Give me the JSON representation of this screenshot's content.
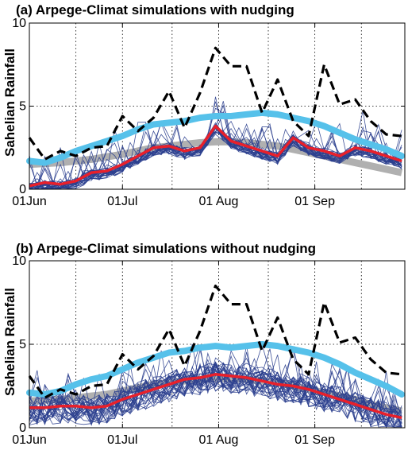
{
  "chart_data": [
    {
      "type": "line",
      "title": "(a) Arpege-Climat simulations with nudging",
      "xlabel": "",
      "ylabel": "Sahelian Rainfall",
      "ylim": [
        0,
        10
      ],
      "xlim": [
        "01 Jun",
        "30 Sep"
      ],
      "yticks": [
        "0",
        "5",
        "10"
      ],
      "xticks": [
        "01Jun",
        "01Jul",
        "01 Aug",
        "01 Sep"
      ],
      "xtick_days": [
        0,
        30,
        61,
        92
      ],
      "grid": true,
      "colors": {
        "observed": "#000000",
        "climatology_light": "#56c1ea",
        "climatology_grey": "#b0b0b0",
        "members": "#2b3f8e",
        "ensemble_mean": "#e8202b"
      },
      "x": [
        0,
        5,
        10,
        15,
        20,
        25,
        30,
        35,
        40,
        45,
        50,
        55,
        60,
        65,
        70,
        75,
        80,
        85,
        90,
        95,
        100,
        105,
        110,
        115,
        120
      ],
      "series": [
        {
          "role": "observed",
          "values": [
            3.1,
            1.8,
            2.3,
            2.0,
            2.5,
            2.6,
            4.4,
            3.5,
            4.3,
            5.9,
            3.7,
            5.8,
            8.5,
            7.4,
            7.4,
            4.6,
            6.6,
            4.1,
            3.2,
            7.5,
            5.1,
            5.4,
            4.1,
            3.3,
            3.2
          ]
        },
        {
          "role": "climatology_light",
          "values": [
            1.7,
            1.6,
            1.9,
            2.3,
            2.6,
            2.9,
            3.2,
            3.6,
            3.9,
            4.0,
            4.1,
            4.3,
            4.4,
            4.4,
            4.5,
            4.6,
            4.5,
            4.3,
            4.1,
            3.8,
            3.4,
            3.0,
            2.7,
            2.4,
            2.0
          ]
        },
        {
          "role": "climatology_grey",
          "values": [
            1.5,
            1.55,
            1.6,
            1.7,
            1.8,
            1.95,
            2.1,
            2.3,
            2.5,
            2.6,
            2.7,
            2.8,
            2.85,
            2.85,
            2.8,
            2.7,
            2.6,
            2.4,
            2.2,
            2.0,
            1.8,
            1.6,
            1.4,
            1.2,
            1.0
          ]
        },
        {
          "role": "ensemble_mean",
          "values": [
            0.2,
            0.4,
            0.3,
            0.5,
            1.0,
            1.1,
            1.5,
            2.0,
            2.5,
            2.6,
            2.3,
            2.5,
            3.8,
            2.9,
            2.6,
            2.3,
            2.0,
            3.1,
            2.5,
            2.3,
            2.0,
            2.5,
            2.3,
            2.0,
            1.7
          ]
        }
      ],
      "member_count": 30
    },
    {
      "type": "line",
      "title": "(b) Arpege-Climat simulations without nudging",
      "xlabel": "",
      "ylabel": "Sahelian Rainfall",
      "ylim": [
        0,
        10
      ],
      "xlim": [
        "01 Jun",
        "30 Sep"
      ],
      "yticks": [
        "0",
        "5",
        "10"
      ],
      "xticks": [
        "01Jun",
        "01Jul",
        "01 Aug",
        "01 Sep"
      ],
      "xtick_days": [
        0,
        30,
        61,
        92
      ],
      "grid": true,
      "colors": {
        "observed": "#000000",
        "climatology_light": "#56c1ea",
        "climatology_grey": "#b0b0b0",
        "members": "#2b3f8e",
        "ensemble_mean": "#e8202b"
      },
      "x": [
        0,
        5,
        10,
        15,
        20,
        25,
        30,
        35,
        40,
        45,
        50,
        55,
        60,
        65,
        70,
        75,
        80,
        85,
        90,
        95,
        100,
        105,
        110,
        115,
        120
      ],
      "series": [
        {
          "role": "observed",
          "values": [
            3.1,
            1.8,
            2.3,
            2.0,
            2.5,
            2.6,
            4.4,
            3.5,
            4.3,
            5.9,
            3.7,
            5.8,
            8.5,
            7.4,
            7.4,
            4.6,
            6.6,
            4.1,
            3.2,
            7.5,
            5.1,
            5.4,
            4.1,
            3.3,
            3.2
          ]
        },
        {
          "role": "climatology_light",
          "values": [
            2.1,
            2.0,
            2.2,
            2.6,
            2.9,
            3.1,
            3.5,
            3.9,
            4.2,
            4.5,
            4.6,
            4.8,
            4.9,
            4.8,
            4.9,
            5.0,
            4.9,
            4.7,
            4.5,
            4.2,
            3.8,
            3.3,
            2.9,
            2.5,
            2.0
          ]
        },
        {
          "role": "climatology_grey",
          "values": [
            1.6,
            1.65,
            1.7,
            1.8,
            1.9,
            2.0,
            2.2,
            2.4,
            2.6,
            2.7,
            2.8,
            2.9,
            2.95,
            2.95,
            2.9,
            2.8,
            2.7,
            2.5,
            2.3,
            2.1,
            1.9,
            1.7,
            1.4,
            1.2,
            1.0
          ]
        },
        {
          "role": "ensemble_mean",
          "values": [
            1.2,
            1.2,
            1.3,
            1.3,
            1.2,
            1.3,
            1.7,
            2.0,
            2.3,
            2.6,
            2.9,
            3.0,
            3.2,
            3.1,
            3.0,
            2.8,
            2.6,
            2.5,
            2.3,
            2.0,
            1.7,
            1.4,
            1.1,
            0.8,
            0.6
          ]
        }
      ],
      "member_count": 30
    }
  ]
}
